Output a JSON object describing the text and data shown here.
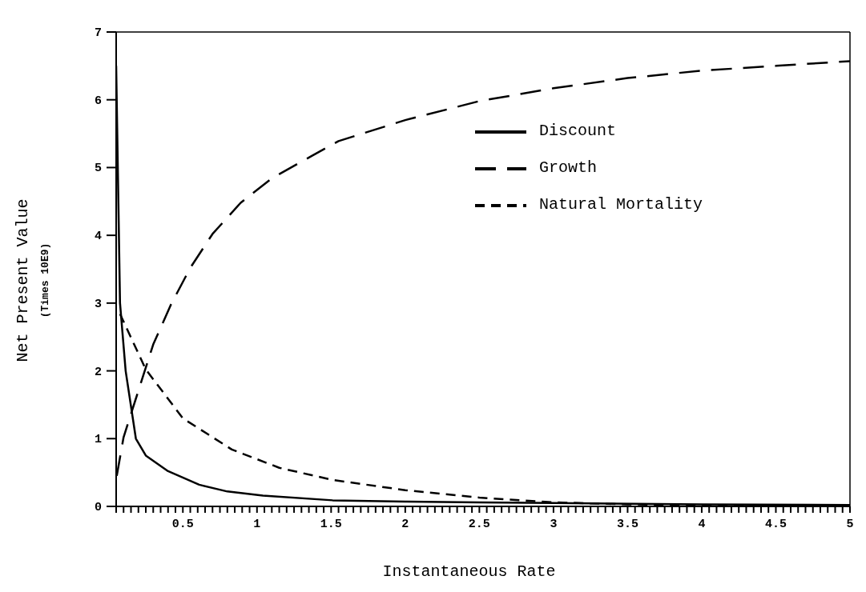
{
  "chart_data": {
    "type": "line",
    "xlabel": "Instantaneous Rate",
    "ylabel": "Net Present Value\n(Times 10E9)",
    "xlim": [
      0.05,
      5
    ],
    "ylim": [
      0,
      7
    ],
    "yticks": [
      0,
      1,
      2,
      3,
      4,
      5,
      6,
      7
    ],
    "xticks": [
      {
        "value": 0.05,
        "label": null
      },
      {
        "value": 0.1,
        "label": null
      },
      {
        "value": 0.15,
        "label": null
      },
      {
        "value": 0.2,
        "label": null
      },
      {
        "value": 0.25,
        "label": null
      },
      {
        "value": 0.3,
        "label": null
      },
      {
        "value": 0.35,
        "label": null
      },
      {
        "value": 0.4,
        "label": null
      },
      {
        "value": 0.45,
        "label": null
      },
      0.5,
      {
        "value": 0.55,
        "label": null
      },
      {
        "value": 0.6,
        "label": null
      },
      {
        "value": 0.65,
        "label": null
      },
      {
        "value": 0.7,
        "label": null
      },
      {
        "value": 0.75,
        "label": null
      },
      {
        "value": 0.8,
        "label": null
      },
      {
        "value": 0.85,
        "label": null
      },
      {
        "value": 0.9,
        "label": null
      },
      {
        "value": 0.95,
        "label": null
      },
      1,
      {
        "value": 1.05,
        "label": null
      },
      {
        "value": 1.1,
        "label": null
      },
      {
        "value": 1.15,
        "label": null
      },
      {
        "value": 1.2,
        "label": null
      },
      {
        "value": 1.25,
        "label": null
      },
      {
        "value": 1.3,
        "label": null
      },
      {
        "value": 1.35,
        "label": null
      },
      {
        "value": 1.4,
        "label": null
      },
      {
        "value": 1.45,
        "label": null
      },
      1.5,
      {
        "value": 1.55,
        "label": null
      },
      {
        "value": 1.6,
        "label": null
      },
      {
        "value": 1.65,
        "label": null
      },
      {
        "value": 1.7,
        "label": null
      },
      {
        "value": 1.75,
        "label": null
      },
      {
        "value": 1.8,
        "label": null
      },
      {
        "value": 1.85,
        "label": null
      },
      {
        "value": 1.9,
        "label": null
      },
      {
        "value": 1.95,
        "label": null
      },
      2,
      {
        "value": 2.05,
        "label": null
      },
      {
        "value": 2.1,
        "label": null
      },
      {
        "value": 2.15,
        "label": null
      },
      {
        "value": 2.2,
        "label": null
      },
      {
        "value": 2.25,
        "label": null
      },
      {
        "value": 2.3,
        "label": null
      },
      {
        "value": 2.35,
        "label": null
      },
      {
        "value": 2.4,
        "label": null
      },
      {
        "value": 2.45,
        "label": null
      },
      2.5,
      {
        "value": 2.55,
        "label": null
      },
      {
        "value": 2.6,
        "label": null
      },
      {
        "value": 2.65,
        "label": null
      },
      {
        "value": 2.7,
        "label": null
      },
      {
        "value": 2.75,
        "label": null
      },
      {
        "value": 2.8,
        "label": null
      },
      {
        "value": 2.85,
        "label": null
      },
      {
        "value": 2.9,
        "label": null
      },
      {
        "value": 2.95,
        "label": null
      },
      3,
      {
        "value": 3.05,
        "label": null
      },
      {
        "value": 3.1,
        "label": null
      },
      {
        "value": 3.15,
        "label": null
      },
      {
        "value": 3.2,
        "label": null
      },
      {
        "value": 3.25,
        "label": null
      },
      {
        "value": 3.3,
        "label": null
      },
      {
        "value": 3.35,
        "label": null
      },
      {
        "value": 3.4,
        "label": null
      },
      {
        "value": 3.45,
        "label": null
      },
      3.5,
      {
        "value": 3.55,
        "label": null
      },
      {
        "value": 3.6,
        "label": null
      },
      {
        "value": 3.65,
        "label": null
      },
      {
        "value": 3.7,
        "label": null
      },
      {
        "value": 3.75,
        "label": null
      },
      {
        "value": 3.8,
        "label": null
      },
      {
        "value": 3.85,
        "label": null
      },
      {
        "value": 3.9,
        "label": null
      },
      {
        "value": 3.95,
        "label": null
      },
      4,
      {
        "value": 4.05,
        "label": null
      },
      {
        "value": 4.1,
        "label": null
      },
      {
        "value": 4.15,
        "label": null
      },
      {
        "value": 4.2,
        "label": null
      },
      {
        "value": 4.25,
        "label": null
      },
      {
        "value": 4.3,
        "label": null
      },
      {
        "value": 4.35,
        "label": null
      },
      {
        "value": 4.4,
        "label": null
      },
      {
        "value": 4.45,
        "label": null
      },
      4.5,
      {
        "value": 4.55,
        "label": null
      },
      {
        "value": 4.6,
        "label": null
      },
      {
        "value": 4.65,
        "label": null
      },
      {
        "value": 4.7,
        "label": null
      },
      {
        "value": 4.75,
        "label": null
      },
      {
        "value": 4.8,
        "label": null
      },
      {
        "value": 4.85,
        "label": null
      },
      {
        "value": 4.9,
        "label": null
      },
      {
        "value": 4.95,
        "label": null
      },
      5
    ],
    "grid": false,
    "legend": "top right",
    "marker": "none",
    "series": [
      {
        "name": "Discount",
        "color": "#000000",
        "line_style": "solid",
        "x": [
          0.05,
          0.076,
          0.114,
          0.183,
          0.25,
          0.4,
          0.61,
          0.8,
          1.04,
          1.51,
          2,
          2.5,
          3,
          4,
          5
        ],
        "values": [
          6.5,
          3,
          2,
          1,
          0.75,
          0.52,
          0.32,
          0.22,
          0.16,
          0.09,
          0.07,
          0.06,
          0.05,
          0.03,
          0.02
        ]
      },
      {
        "name": "Growth",
        "color": "#000000",
        "line_style": "dashed",
        "x": [
          0.054,
          0.1,
          0.18,
          0.3,
          0.42,
          0.55,
          0.7,
          0.89,
          1.1,
          1.36,
          1.55,
          2,
          2.5,
          3,
          3.5,
          4,
          4.5,
          5
        ],
        "values": [
          0.45,
          1.02,
          1.57,
          2.39,
          2.98,
          3.52,
          4.02,
          4.48,
          4.84,
          5.16,
          5.39,
          5.7,
          5.98,
          6.17,
          6.32,
          6.43,
          6.5,
          6.57
        ]
      },
      {
        "name": "Natural Mortality",
        "color": "#000000",
        "line_style": "dashed",
        "x": [
          0.076,
          0.25,
          0.5,
          0.83,
          1.15,
          1.51,
          2,
          2.5,
          3,
          3.5,
          4,
          5
        ],
        "values": [
          2.84,
          2.02,
          1.3,
          0.84,
          0.57,
          0.39,
          0.24,
          0.13,
          0.06,
          0.03,
          0.02,
          0.01
        ]
      }
    ]
  }
}
